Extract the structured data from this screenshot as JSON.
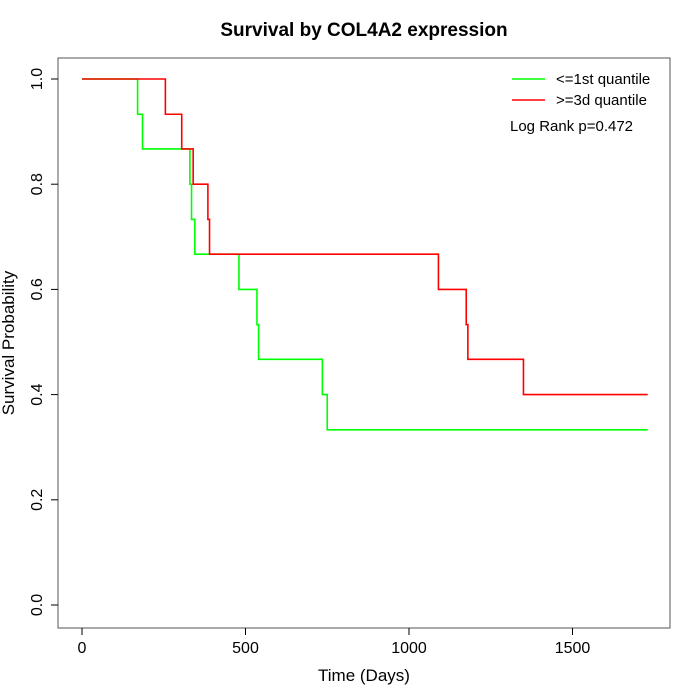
{
  "chart_data": {
    "type": "line",
    "title": "Survival by COL4A2 expression",
    "xlabel": "Time (Days)",
    "ylabel": "Survival Probability",
    "xlim": [
      0,
      1750
    ],
    "ylim": [
      0,
      1
    ],
    "xticks": [
      0,
      500,
      1000,
      1500
    ],
    "yticks": [
      0.0,
      0.2,
      0.4,
      0.6,
      0.8,
      1.0
    ],
    "xtick_labels": [
      "0",
      "500",
      "1000",
      "1500"
    ],
    "ytick_labels": [
      "0.0",
      "0.2",
      "0.4",
      "0.6",
      "0.8",
      "1.0"
    ],
    "grid": false,
    "legend_position": "top-right",
    "annotation": "Log Rank p=0.472",
    "series": [
      {
        "name": "<=1st quantile",
        "color": "#00ff00",
        "step_x": [
          0,
          170,
          185,
          330,
          335,
          345,
          480,
          535,
          540,
          735,
          750,
          1730
        ],
        "step_y": [
          1.0,
          0.933,
          0.867,
          0.8,
          0.733,
          0.667,
          0.6,
          0.533,
          0.467,
          0.4,
          0.333,
          0.333
        ]
      },
      {
        "name": ">=3d quantile",
        "color": "#ff0000",
        "step_x": [
          0,
          255,
          305,
          340,
          385,
          390,
          1090,
          1175,
          1180,
          1350,
          1730
        ],
        "step_y": [
          1.0,
          0.933,
          0.867,
          0.8,
          0.733,
          0.667,
          0.6,
          0.533,
          0.467,
          0.4,
          0.4
        ]
      }
    ]
  }
}
